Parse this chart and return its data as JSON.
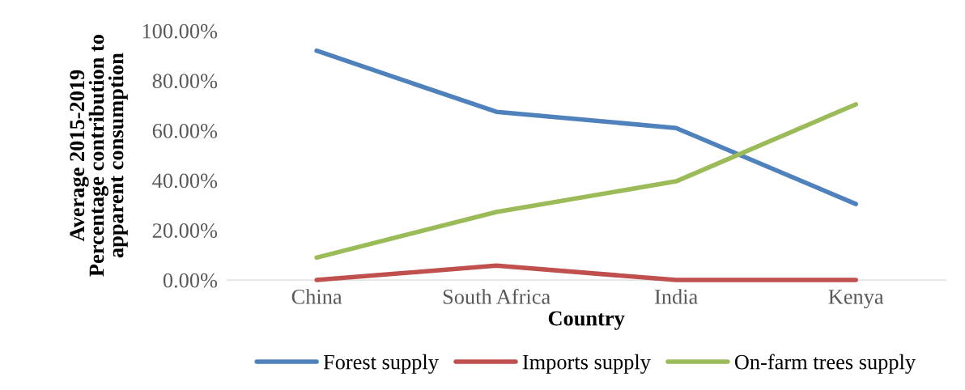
{
  "chart_data": {
    "type": "line",
    "xlabel": "Country",
    "ylabel": "Average 2015-2019\nPercentage contribution to\napparent consumption",
    "categories": [
      "China",
      "South Africa",
      "India",
      "Kenya"
    ],
    "series": [
      {
        "name": "Forest supply",
        "color": "#4f81bd",
        "values": [
          92,
          67.5,
          61,
          30.5
        ]
      },
      {
        "name": "Imports supply",
        "color": "#c0504d",
        "values": [
          0,
          5.8,
          0,
          0
        ]
      },
      {
        "name": "On-farm trees supply",
        "color": "#9bbb59",
        "values": [
          9,
          27.3,
          39.6,
          70.5
        ]
      }
    ],
    "ylim": [
      0,
      100
    ],
    "yticks": [
      {
        "value": 0,
        "label": "0.00%"
      },
      {
        "value": 20,
        "label": "20.00%"
      },
      {
        "value": 40,
        "label": "40.00%"
      },
      {
        "value": 60,
        "label": "60.00%"
      },
      {
        "value": 80,
        "label": "80.00%"
      },
      {
        "value": 100,
        "label": "100.00%"
      }
    ],
    "grid": false,
    "legend": "bottom",
    "marker": "none",
    "line_style": "solid"
  }
}
